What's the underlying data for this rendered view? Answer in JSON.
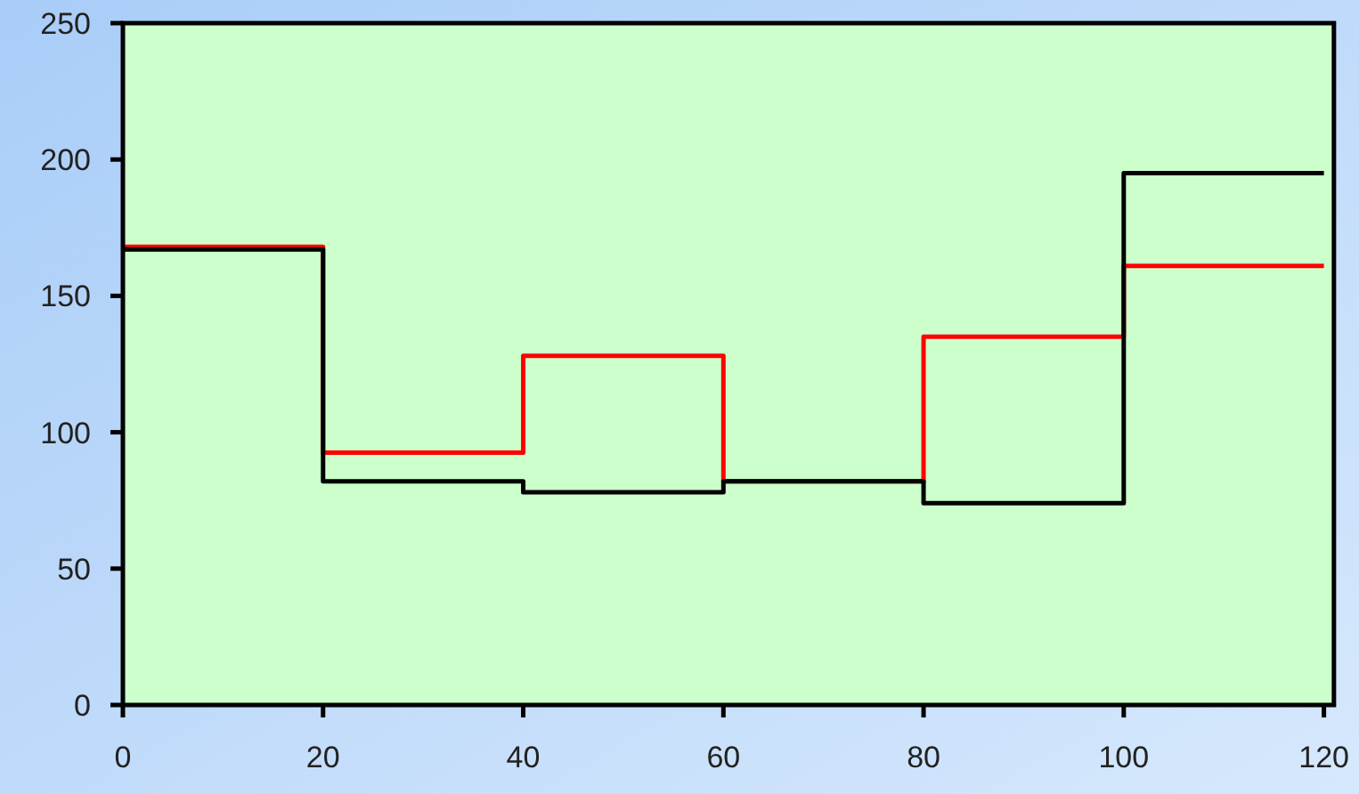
{
  "chart_data": {
    "type": "step",
    "x": [
      0,
      20,
      40,
      60,
      80,
      100,
      120
    ],
    "series": [
      {
        "color": "#ff0000",
        "values": [
          168,
          92.5,
          128,
          82,
          135,
          161,
          161
        ]
      },
      {
        "color": "#000000",
        "values": [
          167,
          82,
          78,
          82,
          74,
          195,
          195
        ]
      }
    ],
    "xlim": [
      0,
      121
    ],
    "ylim": [
      0,
      250
    ],
    "xticks": [
      0,
      20,
      40,
      60,
      80,
      100,
      120
    ],
    "yticks": [
      0,
      50,
      100,
      150,
      200,
      250
    ],
    "grid": false
  }
}
